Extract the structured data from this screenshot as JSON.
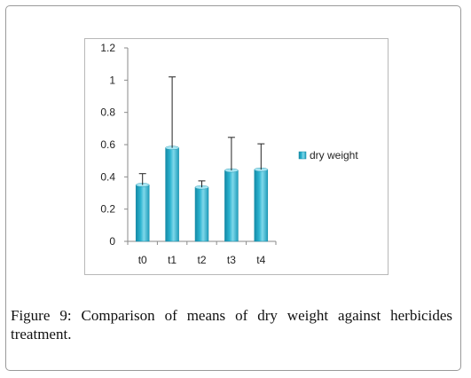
{
  "figure": {
    "caption_label": "Figure 9:",
    "caption_text": "Comparison of means of dry weight against herbicides treatment."
  },
  "chart_data": {
    "type": "bar",
    "categories": [
      "t0",
      "t1",
      "t2",
      "t3",
      "t4"
    ],
    "series": [
      {
        "name": "dry weight",
        "values": [
          0.35,
          0.58,
          0.335,
          0.44,
          0.445
        ],
        "error_upper": [
          0.07,
          0.44,
          0.04,
          0.205,
          0.16
        ]
      }
    ],
    "yticks": [
      "0",
      "0.2",
      "0.4",
      "0.6",
      "0.8",
      "1",
      "1.2"
    ],
    "ylim": [
      0,
      1.2
    ],
    "grid": false,
    "legend_position": "right",
    "colors": {
      "bar_light": "#7fd8ea",
      "bar_mid": "#2bb3d0",
      "bar_dark": "#148aa6",
      "bar_top": "#a8e6f3",
      "error_bar": "#222222",
      "axis": "#8a8a8a"
    }
  }
}
